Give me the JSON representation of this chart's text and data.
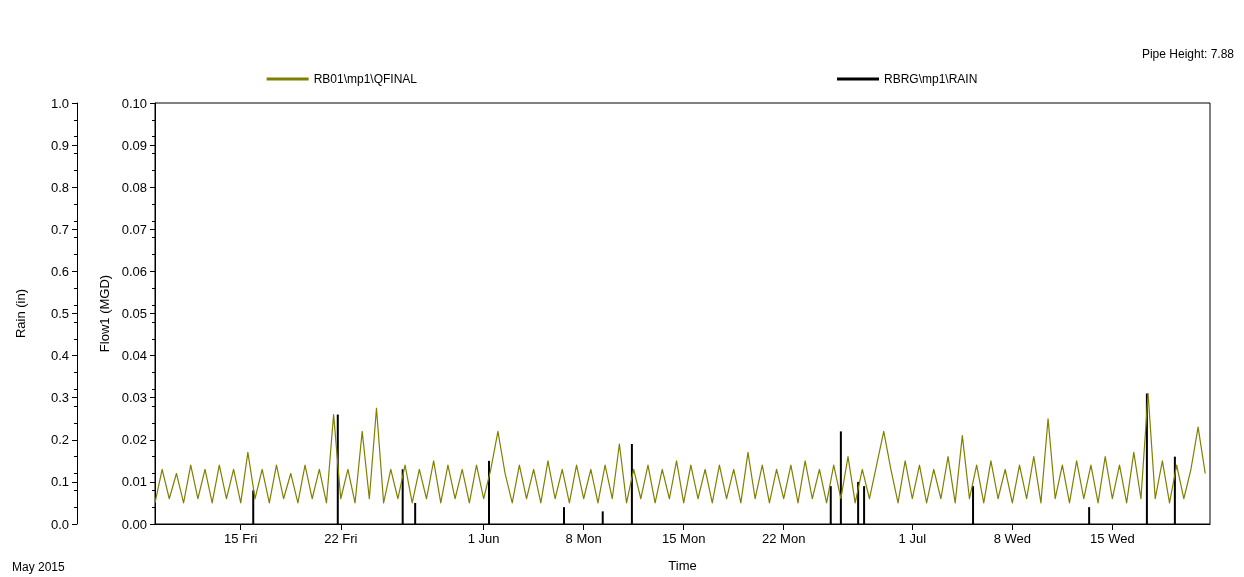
{
  "chart_data": {
    "type": "line",
    "xlabel": "Time",
    "ylabel": "Flow1 (MGD)",
    "y2label": "Rain (in)",
    "annotations": [
      "Pipe Height: 7.88",
      "May 2015"
    ],
    "legend": "top",
    "grid": false,
    "marker": "none",
    "line_style": "solid",
    "x": [
      "2015-05-09T00:00",
      "2015-05-09T12:00",
      "2015-05-10T00:00",
      "2015-05-10T12:00",
      "2015-05-11T00:00",
      "2015-05-11T12:00",
      "2015-05-12T00:00",
      "2015-05-12T12:00",
      "2015-05-13T00:00",
      "2015-05-13T12:00",
      "2015-05-14T00:00",
      "2015-05-14T12:00",
      "2015-05-15T00:00",
      "2015-05-15T12:00",
      "2015-05-16T00:00",
      "2015-05-16T12:00",
      "2015-05-17T00:00",
      "2015-05-17T12:00",
      "2015-05-18T00:00",
      "2015-05-18T12:00",
      "2015-05-19T00:00",
      "2015-05-19T12:00",
      "2015-05-20T00:00",
      "2015-05-20T12:00",
      "2015-05-21T00:00",
      "2015-05-21T12:00",
      "2015-05-22T00:00",
      "2015-05-22T12:00",
      "2015-05-23T00:00",
      "2015-05-23T12:00",
      "2015-05-24T00:00",
      "2015-05-24T12:00",
      "2015-05-25T00:00",
      "2015-05-25T12:00",
      "2015-05-26T00:00",
      "2015-05-26T12:00",
      "2015-05-27T00:00",
      "2015-05-27T12:00",
      "2015-05-28T00:00",
      "2015-05-28T12:00",
      "2015-05-29T00:00",
      "2015-05-29T12:00",
      "2015-05-30T00:00",
      "2015-05-30T12:00",
      "2015-05-31T00:00",
      "2015-05-31T12:00",
      "2015-06-01T00:00",
      "2015-06-01T12:00",
      "2015-06-02T00:00",
      "2015-06-02T12:00",
      "2015-06-03T00:00",
      "2015-06-03T12:00",
      "2015-06-04T00:00",
      "2015-06-04T12:00",
      "2015-06-05T00:00",
      "2015-06-05T12:00",
      "2015-06-06T00:00",
      "2015-06-06T12:00",
      "2015-06-07T00:00",
      "2015-06-07T12:00",
      "2015-06-08T00:00",
      "2015-06-08T12:00",
      "2015-06-09T00:00",
      "2015-06-09T12:00",
      "2015-06-10T00:00",
      "2015-06-10T12:00",
      "2015-06-11T00:00",
      "2015-06-11T12:00",
      "2015-06-12T00:00",
      "2015-06-12T12:00",
      "2015-06-13T00:00",
      "2015-06-13T12:00",
      "2015-06-14T00:00",
      "2015-06-14T12:00",
      "2015-06-15T00:00",
      "2015-06-15T12:00",
      "2015-06-16T00:00",
      "2015-06-16T12:00",
      "2015-06-17T00:00",
      "2015-06-17T12:00",
      "2015-06-18T00:00",
      "2015-06-18T12:00",
      "2015-06-19T00:00",
      "2015-06-19T12:00",
      "2015-06-20T00:00",
      "2015-06-20T12:00",
      "2015-06-21T00:00",
      "2015-06-21T12:00",
      "2015-06-22T00:00",
      "2015-06-22T12:00",
      "2015-06-23T00:00",
      "2015-06-23T12:00",
      "2015-06-24T00:00",
      "2015-06-24T12:00",
      "2015-06-25T00:00",
      "2015-06-25T12:00",
      "2015-06-26T00:00",
      "2015-06-26T12:00",
      "2015-06-27T00:00",
      "2015-06-27T12:00",
      "2015-06-28T00:00",
      "2015-06-28T12:00",
      "2015-06-29T00:00",
      "2015-06-29T12:00",
      "2015-06-30T00:00",
      "2015-06-30T12:00",
      "2015-07-01T00:00",
      "2015-07-01T12:00",
      "2015-07-02T00:00",
      "2015-07-02T12:00",
      "2015-07-03T00:00",
      "2015-07-03T12:00",
      "2015-07-04T00:00",
      "2015-07-04T12:00",
      "2015-07-05T00:00",
      "2015-07-05T12:00",
      "2015-07-06T00:00",
      "2015-07-06T12:00",
      "2015-07-07T00:00",
      "2015-07-07T12:00",
      "2015-07-08T00:00",
      "2015-07-08T12:00",
      "2015-07-09T00:00",
      "2015-07-09T12:00",
      "2015-07-10T00:00",
      "2015-07-10T12:00",
      "2015-07-11T00:00",
      "2015-07-11T12:00",
      "2015-07-12T00:00",
      "2015-07-12T12:00",
      "2015-07-13T00:00",
      "2015-07-13T12:00",
      "2015-07-14T00:00",
      "2015-07-14T12:00",
      "2015-07-15T00:00",
      "2015-07-15T12:00",
      "2015-07-16T00:00",
      "2015-07-16T12:00",
      "2015-07-17T00:00",
      "2015-07-17T12:00",
      "2015-07-18T00:00",
      "2015-07-18T12:00",
      "2015-07-19T00:00",
      "2015-07-19T12:00",
      "2015-07-20T00:00",
      "2015-07-20T12:00",
      "2015-07-21T00:00",
      "2015-07-21T12:00"
    ],
    "series": [
      {
        "name": "RB01\\mp1\\QFINAL",
        "color": "#808000",
        "values": [
          0.005,
          0.013,
          0.006,
          0.012,
          0.005,
          0.014,
          0.006,
          0.013,
          0.005,
          0.014,
          0.006,
          0.013,
          0.005,
          0.017,
          0.006,
          0.013,
          0.005,
          0.014,
          0.006,
          0.012,
          0.005,
          0.014,
          0.006,
          0.013,
          0.005,
          0.026,
          0.006,
          0.013,
          0.005,
          0.022,
          0.006,
          0.0275,
          0.005,
          0.013,
          0.006,
          0.014,
          0.005,
          0.013,
          0.006,
          0.015,
          0.005,
          0.014,
          0.006,
          0.013,
          0.005,
          0.014,
          0.006,
          0.013,
          0.022,
          0.012,
          0.005,
          0.014,
          0.006,
          0.013,
          0.005,
          0.015,
          0.006,
          0.013,
          0.005,
          0.014,
          0.006,
          0.013,
          0.005,
          0.014,
          0.006,
          0.019,
          0.005,
          0.013,
          0.006,
          0.014,
          0.005,
          0.013,
          0.006,
          0.015,
          0.005,
          0.014,
          0.006,
          0.013,
          0.005,
          0.014,
          0.006,
          0.013,
          0.005,
          0.017,
          0.006,
          0.014,
          0.005,
          0.013,
          0.006,
          0.014,
          0.005,
          0.015,
          0.006,
          0.013,
          0.005,
          0.014,
          0.006,
          0.016,
          0.005,
          0.013,
          0.006,
          0.014,
          0.022,
          0.013,
          0.005,
          0.015,
          0.006,
          0.014,
          0.005,
          0.013,
          0.006,
          0.016,
          0.005,
          0.021,
          0.006,
          0.014,
          0.005,
          0.015,
          0.006,
          0.013,
          0.005,
          0.014,
          0.006,
          0.016,
          0.005,
          0.025,
          0.006,
          0.014,
          0.005,
          0.015,
          0.006,
          0.014,
          0.005,
          0.016,
          0.006,
          0.014,
          0.005,
          0.017,
          0.006,
          0.031,
          0.006,
          0.015,
          0.005,
          0.014,
          0.006,
          0.013,
          0.023,
          0.012
        ]
      },
      {
        "name": "RBRG\\mp1\\RAIN",
        "type": "bar",
        "axis": "y2",
        "color": "#000000",
        "x": [
          "2015-05-15T21:00",
          "2015-05-21T19:00",
          "2015-05-26T08:00",
          "2015-05-27T05:00",
          "2015-06-01T09:00",
          "2015-06-06T15:00",
          "2015-06-09T08:00",
          "2015-06-11T09:00",
          "2015-06-25T07:00",
          "2015-06-26T00:00",
          "2015-06-27T05:00",
          "2015-06-27T15:00",
          "2015-07-05T06:00",
          "2015-07-13T09:00",
          "2015-07-17T10:00",
          "2015-07-19T09:00"
        ],
        "values": [
          0.08,
          0.26,
          0.13,
          0.05,
          0.15,
          0.04,
          0.03,
          0.19,
          0.09,
          0.22,
          0.1,
          0.09,
          0.09,
          0.04,
          0.31,
          0.16
        ]
      }
    ],
    "xlim": [
      "2015-05-09T00:00",
      "2015-07-21T20:00"
    ],
    "xticks": [
      {
        "value": "2015-05-15",
        "label": "15 Fri"
      },
      {
        "value": "2015-05-22",
        "label": "22 Fri"
      },
      {
        "value": "2015-06-01",
        "label": "1 Jun"
      },
      {
        "value": "2015-06-08",
        "label": "8 Mon"
      },
      {
        "value": "2015-06-15",
        "label": "15 Mon"
      },
      {
        "value": "2015-06-22",
        "label": "22 Mon"
      },
      {
        "value": "2015-07-01",
        "label": "1 Jul"
      },
      {
        "value": "2015-07-08",
        "label": "8 Wed"
      },
      {
        "value": "2015-07-15",
        "label": "15 Wed"
      }
    ],
    "ylim": [
      0,
      0.1
    ],
    "yticks": [
      {
        "value": 0,
        "label": "0.00"
      },
      0.01,
      0.02,
      0.03,
      0.04,
      0.05,
      0.06,
      0.07,
      0.08,
      0.09,
      {
        "value": 0.1,
        "label": "0.10"
      }
    ],
    "y2lim": [
      0,
      1
    ],
    "y2ticks": [
      {
        "value": 0,
        "label": "0.0"
      },
      0.1,
      0.2,
      0.3,
      0.4,
      0.5,
      0.6,
      0.7,
      0.8,
      0.9,
      {
        "value": 1,
        "label": "1.0"
      }
    ]
  }
}
